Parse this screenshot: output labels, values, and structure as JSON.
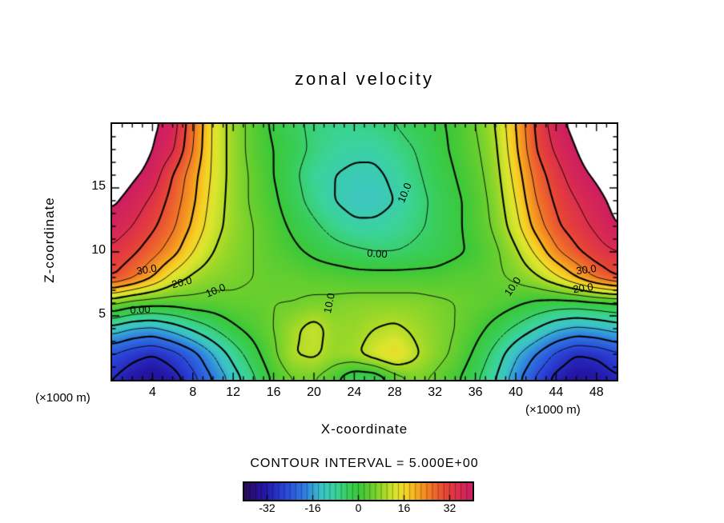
{
  "contour_note": "CONTOUR INTERVAL = 5.000E+00",
  "chart_data": {
    "type": "contour",
    "title": "zonal velocity",
    "xlabel": "X-coordinate",
    "ylabel": "Z-coordinate",
    "x_unit_left": "(×1000 m)",
    "x_unit_right": "(×1000 m)",
    "x_range": [
      0,
      50
    ],
    "z_range": [
      0,
      20
    ],
    "x_ticks": [
      4,
      8,
      12,
      16,
      20,
      24,
      28,
      32,
      36,
      40,
      44,
      48
    ],
    "z_ticks": [
      5,
      10,
      15
    ],
    "x": [
      0,
      2,
      4,
      6,
      8,
      10,
      12,
      14,
      16,
      18,
      20,
      22,
      24,
      26,
      28,
      30,
      32,
      34,
      36,
      38,
      40,
      42,
      44,
      46,
      48,
      50
    ],
    "z": [
      0,
      2,
      4,
      6,
      8,
      10,
      12,
      14,
      16,
      18,
      20
    ],
    "values": [
      [
        -30,
        -34,
        -36,
        -33,
        -27,
        -20,
        -13,
        -6,
        1,
        5,
        5,
        1,
        -5,
        -5,
        2,
        6,
        4,
        1,
        -4,
        -10,
        -18,
        -26,
        -32,
        -35,
        -34,
        -31
      ],
      [
        -25,
        -28,
        -30,
        -27,
        -22,
        -15,
        -8,
        -2,
        4,
        10,
        11,
        8,
        9,
        13,
        16,
        11,
        7,
        4,
        -1,
        -7,
        -14,
        -20,
        -26,
        -30,
        -29,
        -26
      ],
      [
        -12,
        -15,
        -16,
        -13,
        -9,
        -5,
        -1,
        2,
        5,
        9,
        12,
        8,
        8,
        10,
        11,
        9,
        7,
        5,
        2,
        -2,
        -6,
        -10,
        -14,
        -16,
        -15,
        -13
      ],
      [
        6,
        3,
        2,
        2,
        3,
        3,
        4,
        4,
        5,
        5,
        6,
        6,
        7,
        7,
        7,
        7,
        6,
        5,
        4,
        3,
        1,
        -1,
        -2,
        -2,
        -1,
        0
      ],
      [
        30,
        26,
        20,
        13,
        9,
        7,
        6,
        5,
        4,
        4,
        3,
        3,
        2,
        2,
        2,
        2,
        2,
        3,
        3,
        4,
        6,
        9,
        14,
        20,
        26,
        30
      ],
      [
        34,
        31,
        27,
        22,
        15,
        10,
        7,
        5,
        3,
        1,
        -1,
        -3,
        -4,
        -5,
        -5,
        -4,
        -3,
        -1,
        1,
        4,
        9,
        16,
        24,
        29,
        33,
        35
      ],
      [
        38,
        35,
        31,
        26,
        19,
        12,
        8,
        5,
        2,
        -1,
        -4,
        -7,
        -9,
        -9,
        -8,
        -6,
        -4,
        -1,
        2,
        6,
        13,
        22,
        29,
        33,
        36,
        40
      ],
      [
        41,
        38,
        34,
        28,
        21,
        13,
        8,
        4,
        1,
        -3,
        -7,
        -10,
        -12,
        -12,
        -10,
        -7,
        -4,
        -1,
        2,
        7,
        15,
        25,
        31,
        35,
        38,
        42
      ],
      [
        44,
        41,
        38,
        30,
        22,
        14,
        8,
        4,
        0,
        -4,
        -8,
        -10,
        -11,
        -11,
        -9,
        -6,
        -3,
        0,
        3,
        8,
        17,
        27,
        33,
        38,
        41,
        45
      ],
      [
        46,
        44,
        40,
        36,
        25,
        14,
        8,
        3,
        0,
        -3,
        -6,
        -8,
        -9,
        -9,
        -7,
        -5,
        -2,
        1,
        4,
        9,
        19,
        30,
        36,
        40,
        44,
        46
      ],
      [
        47,
        45,
        41,
        38,
        26,
        14,
        8,
        3,
        -1,
        -4,
        -6,
        -7,
        -7,
        -6,
        -5,
        -3,
        -1,
        1,
        5,
        10,
        20,
        31,
        38,
        42,
        45,
        47
      ]
    ],
    "contour_interval": 5,
    "levels": [
      -35,
      -30,
      -25,
      -20,
      -15,
      -10,
      -5,
      0,
      5,
      10,
      15,
      20,
      25,
      30,
      35,
      40
    ],
    "colormap": [
      [
        -40,
        "#2d0a5e"
      ],
      [
        -33,
        "#2417a8"
      ],
      [
        -26,
        "#2b46d8"
      ],
      [
        -19,
        "#2f7ee2"
      ],
      [
        -13,
        "#3cc3c8"
      ],
      [
        -8,
        "#3bd49b"
      ],
      [
        -4,
        "#39cf5e"
      ],
      [
        0,
        "#3bc83a"
      ],
      [
        5,
        "#6ed02e"
      ],
      [
        9,
        "#a4da28"
      ],
      [
        13,
        "#dce62e"
      ],
      [
        17,
        "#f6d226"
      ],
      [
        21,
        "#f7a61f"
      ],
      [
        26,
        "#f0712a"
      ],
      [
        31,
        "#e64438"
      ],
      [
        36,
        "#d92a52"
      ],
      [
        40,
        "#cc1f63"
      ]
    ],
    "colorbar": {
      "range": [
        -40,
        40
      ],
      "ticks": [
        -32,
        -16,
        0,
        16,
        32
      ]
    },
    "contour_labels": [
      {
        "text": "30.0",
        "x": 3.4,
        "z": 8.6,
        "rot": -10
      },
      {
        "text": "20.0",
        "x": 6.9,
        "z": 7.6,
        "rot": -14
      },
      {
        "text": "10.0",
        "x": 10.2,
        "z": 7.0,
        "rot": -22
      },
      {
        "text": "0.00",
        "x": 2.8,
        "z": 5.5,
        "rot": -3
      },
      {
        "text": "0.00",
        "x": 26.3,
        "z": 9.9,
        "rot": 4
      },
      {
        "text": "10.0",
        "x": 29.0,
        "z": 14.6,
        "rot": -68
      },
      {
        "text": "10.0",
        "x": 21.5,
        "z": 6.0,
        "rot": -78
      },
      {
        "text": "10.0",
        "x": 39.7,
        "z": 7.3,
        "rot": -55
      },
      {
        "text": "30.0",
        "x": 47.0,
        "z": 8.6,
        "rot": -8
      },
      {
        "text": "20.0",
        "x": 46.7,
        "z": 7.2,
        "rot": -8
      }
    ]
  }
}
